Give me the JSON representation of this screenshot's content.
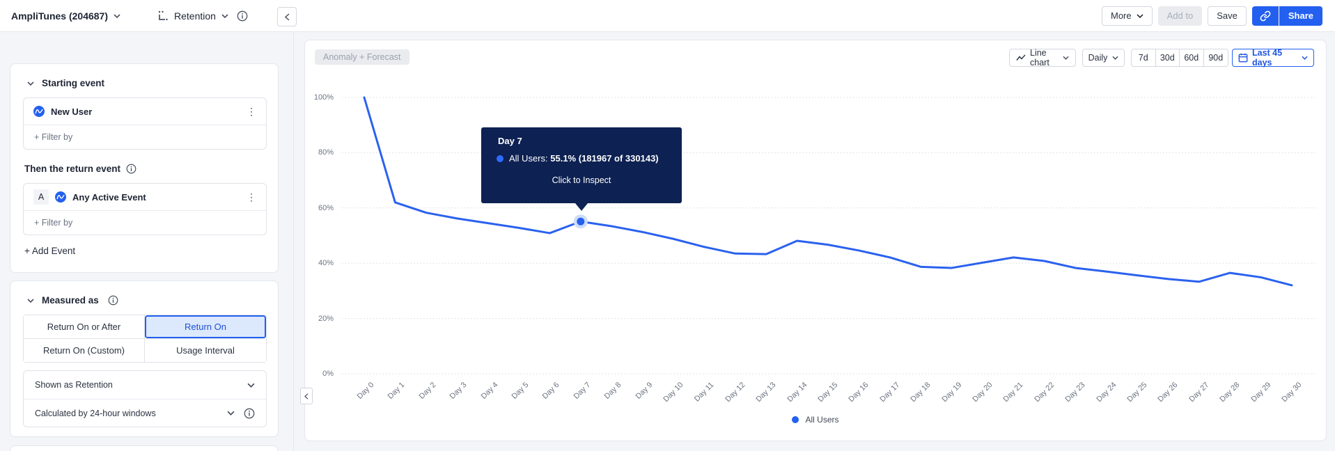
{
  "header": {
    "project": "AmpliTunes (204687)",
    "analysis_type": "Retention",
    "more_label": "More",
    "add_to_label": "Add to",
    "save_label": "Save",
    "share_label": "Share"
  },
  "sidebar": {
    "starting_event": {
      "title": "Starting event",
      "event": "New User",
      "filter_label": "+ Filter by"
    },
    "return_event": {
      "title": "Then the return event",
      "badge": "A",
      "event": "Any Active Event",
      "filter_label": "+ Filter by"
    },
    "add_event_label": "+ Add Event",
    "measured_as": {
      "title": "Measured as",
      "options": [
        "Return On or After",
        "Return On",
        "Return On (Custom)",
        "Usage Interval"
      ],
      "selected": "Return On",
      "shown_as": "Shown as Retention",
      "calculated_by": "Calculated by 24-hour windows"
    }
  },
  "chart_controls": {
    "anomaly_forecast": "Anomaly + Forecast",
    "chart_type": "Line chart",
    "granularity": "Daily",
    "ranges": [
      "7d",
      "30d",
      "60d",
      "90d"
    ],
    "date_range": "Last 45 days"
  },
  "tooltip": {
    "title": "Day 7",
    "series_label": "All Users:",
    "value": "55.1% (181967 of 330143)",
    "action": "Click to Inspect"
  },
  "legend": {
    "label": "All Users"
  },
  "chart_data": {
    "type": "line",
    "title": "",
    "xlabel": "",
    "ylabel": "",
    "x": [
      "Day 0",
      "Day 1",
      "Day 2",
      "Day 3",
      "Day 4",
      "Day 5",
      "Day 6",
      "Day 7",
      "Day 8",
      "Day 9",
      "Day 10",
      "Day 11",
      "Day 12",
      "Day 13",
      "Day 14",
      "Day 15",
      "Day 16",
      "Day 17",
      "Day 18",
      "Day 19",
      "Day 20",
      "Day 21",
      "Day 22",
      "Day 23",
      "Day 24",
      "Day 25",
      "Day 26",
      "Day 27",
      "Day 28",
      "Day 29",
      "Day 30"
    ],
    "series": [
      {
        "name": "All Users",
        "values": [
          100,
          62,
          58.3,
          56.2,
          54.5,
          52.8,
          50.9,
          55.1,
          53.4,
          51.3,
          48.8,
          45.9,
          43.5,
          43.3,
          48.1,
          46.7,
          44.6,
          42.1,
          38.7,
          38.3,
          40.2,
          42.1,
          40.8,
          38.3,
          37.0,
          35.6,
          34.3,
          33.3,
          36.5,
          34.9,
          32.0
        ]
      }
    ],
    "ylim": [
      0,
      100
    ],
    "ytick_values": [
      0,
      20,
      40,
      60,
      80,
      100
    ],
    "ytick_labels": [
      "0%",
      "20%",
      "40%",
      "60%",
      "80%",
      "100%"
    ],
    "grid": "horizontal-dotted",
    "legend_position": "bottom-center",
    "highlighted_point": {
      "x": "Day 7",
      "value": 55.1,
      "numerator": 181967,
      "denominator": 330143
    }
  },
  "colors": {
    "accent_blue": "#2360ef",
    "line_blue": "#2a61ee",
    "selected_bg": "#dce8fb",
    "tooltip_bg": "#0d2152",
    "page_bg": "#f4f5f8",
    "gridline": "#d7dade"
  }
}
